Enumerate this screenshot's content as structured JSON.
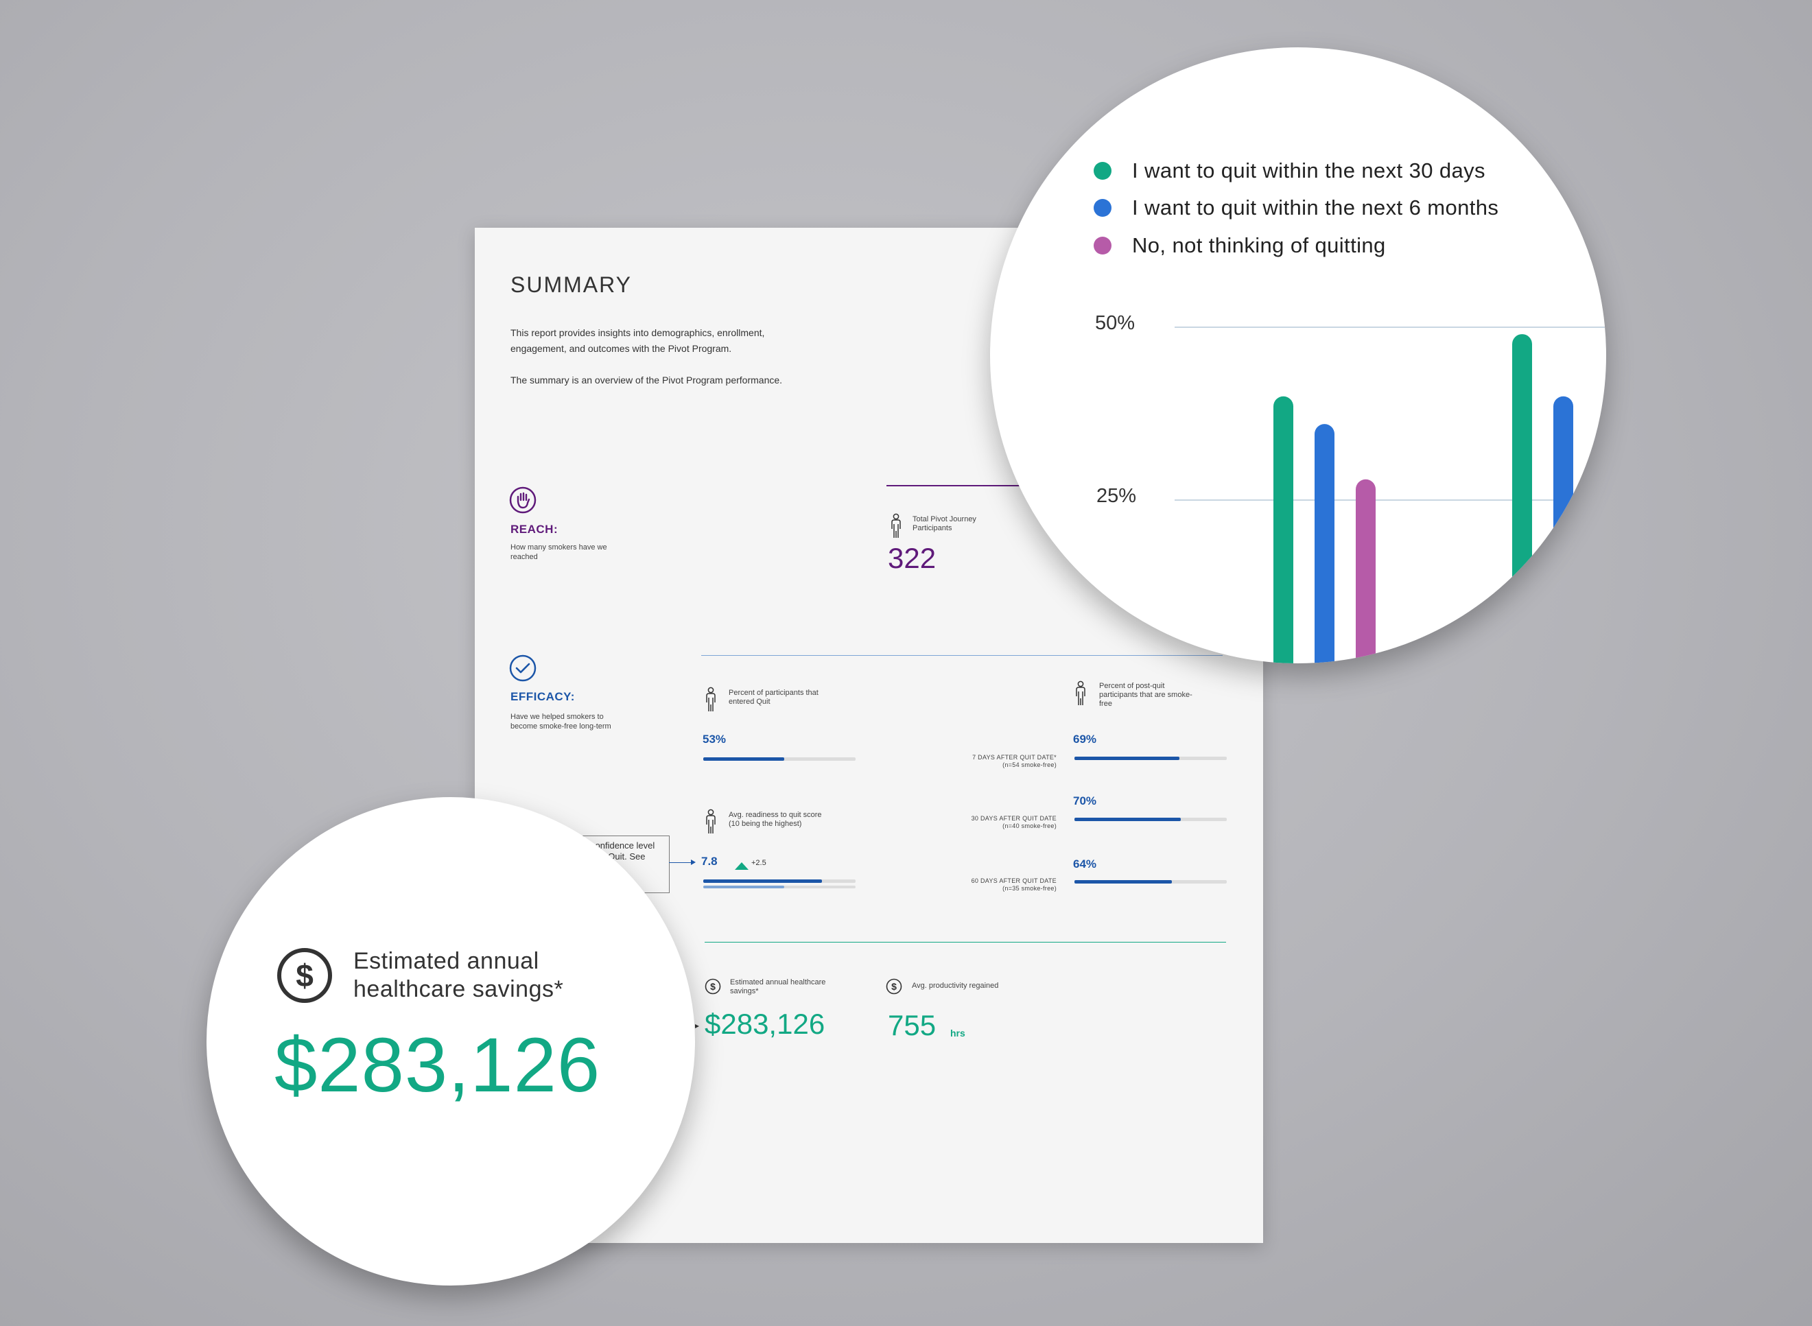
{
  "document": {
    "title": "SUMMARY",
    "intro_line1": "This report provides insights into demographics, enrollment,",
    "intro_line2": "engagement, and outcomes with the Pivot Program.",
    "intro_line3": "The summary is an overview of the Pivot Program performance.",
    "reach": {
      "label": "REACH:",
      "desc_line1": "How many smokers have we",
      "desc_line2": "reached",
      "metric_label_line1": "Total Pivot Journey",
      "metric_label_line2": "Participants",
      "metric_value": "322"
    },
    "efficacy": {
      "label": "EFFICACY:",
      "desc_line1": "Have we helped smokers to",
      "desc_line2": "become smoke-free long-term",
      "quit_label_line1": "Percent of participants that",
      "quit_label_line2": "entered Quit",
      "quit_value": "53%",
      "quit_fraction": 0.53,
      "readiness_label_line1": "Avg. readiness to quit score",
      "readiness_label_line2": "(10 being the highest)",
      "readiness_value": "7.8",
      "readiness_change": "+2.5",
      "readiness_fraction": 0.78,
      "readiness_prior_fraction": 0.53,
      "callout_line1": "confidence level",
      "callout_line2": "d of Quit. See",
      "postquit_label_line1": "Percent of post-quit",
      "postquit_label_line2": "participants that are smoke-",
      "postquit_label_line3": "free",
      "postquit_items": [
        {
          "value": "69%",
          "fraction": 0.69,
          "note_line1": "7 DAYS AFTER QUIT DATE*",
          "note_line2": "(n=54 smoke-free)"
        },
        {
          "value": "70%",
          "fraction": 0.7,
          "note_line1": "30 DAYS AFTER QUIT DATE",
          "note_line2": "(n=40 smoke-free)"
        },
        {
          "value": "64%",
          "fraction": 0.64,
          "note_line1": "60 DAYS AFTER QUIT DATE",
          "note_line2": "(n=35 smoke-free)"
        }
      ]
    },
    "savings": {
      "healthcare_label_line1": "Estimated annual healthcare",
      "healthcare_label_line2": "savings*",
      "healthcare_value": "$283,126",
      "productivity_label": "Avg. productivity regained",
      "productivity_value": "755",
      "productivity_unit": "hrs"
    }
  },
  "zoom_savings": {
    "label_line1": "Estimated annual",
    "label_line2": "healthcare savings*",
    "value": "$283,126",
    "icon": "dollar-circle-icon"
  },
  "chart_data": {
    "type": "bar",
    "ylim": [
      0,
      50
    ],
    "yticks": [
      "50%",
      "25%"
    ],
    "legend_position": "top",
    "series": [
      {
        "name": "I want to quit within the next 30 days",
        "color": "#12a884",
        "values": [
          40,
          49
        ]
      },
      {
        "name": "I want to quit within the next 6 months",
        "color": "#2b73d6",
        "values": [
          36,
          40
        ]
      },
      {
        "name": "No, not thinking of quitting",
        "color": "#b65ba8",
        "values": [
          28,
          null
        ]
      }
    ]
  },
  "colors": {
    "reach": "#5f1a7a",
    "efficacy": "#1c56a8",
    "savings": "#12a884"
  }
}
